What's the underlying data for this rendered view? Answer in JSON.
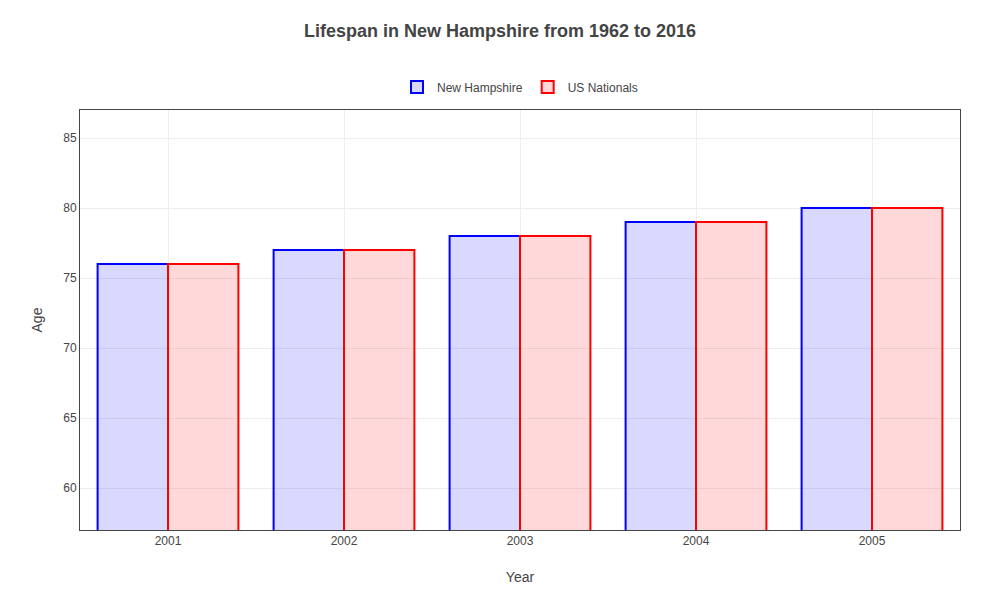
{
  "chart_data": {
    "type": "bar",
    "title": "Lifespan in New Hampshire from 1962 to 2016",
    "x_label": "Year",
    "y_label": "Age",
    "categories": [
      "2001",
      "2002",
      "2003",
      "2004",
      "2005"
    ],
    "series": [
      {
        "name": "New Hampshire",
        "color": "#0000ff",
        "values": [
          76,
          77,
          78,
          79,
          80
        ]
      },
      {
        "name": "US Nationals",
        "color": "#ff0000",
        "values": [
          76,
          77,
          78,
          79,
          80
        ]
      }
    ],
    "ylim": [
      57,
      87
    ],
    "yticks": [
      60,
      65,
      70,
      75,
      80,
      85
    ],
    "grid": true,
    "legend": "top"
  }
}
